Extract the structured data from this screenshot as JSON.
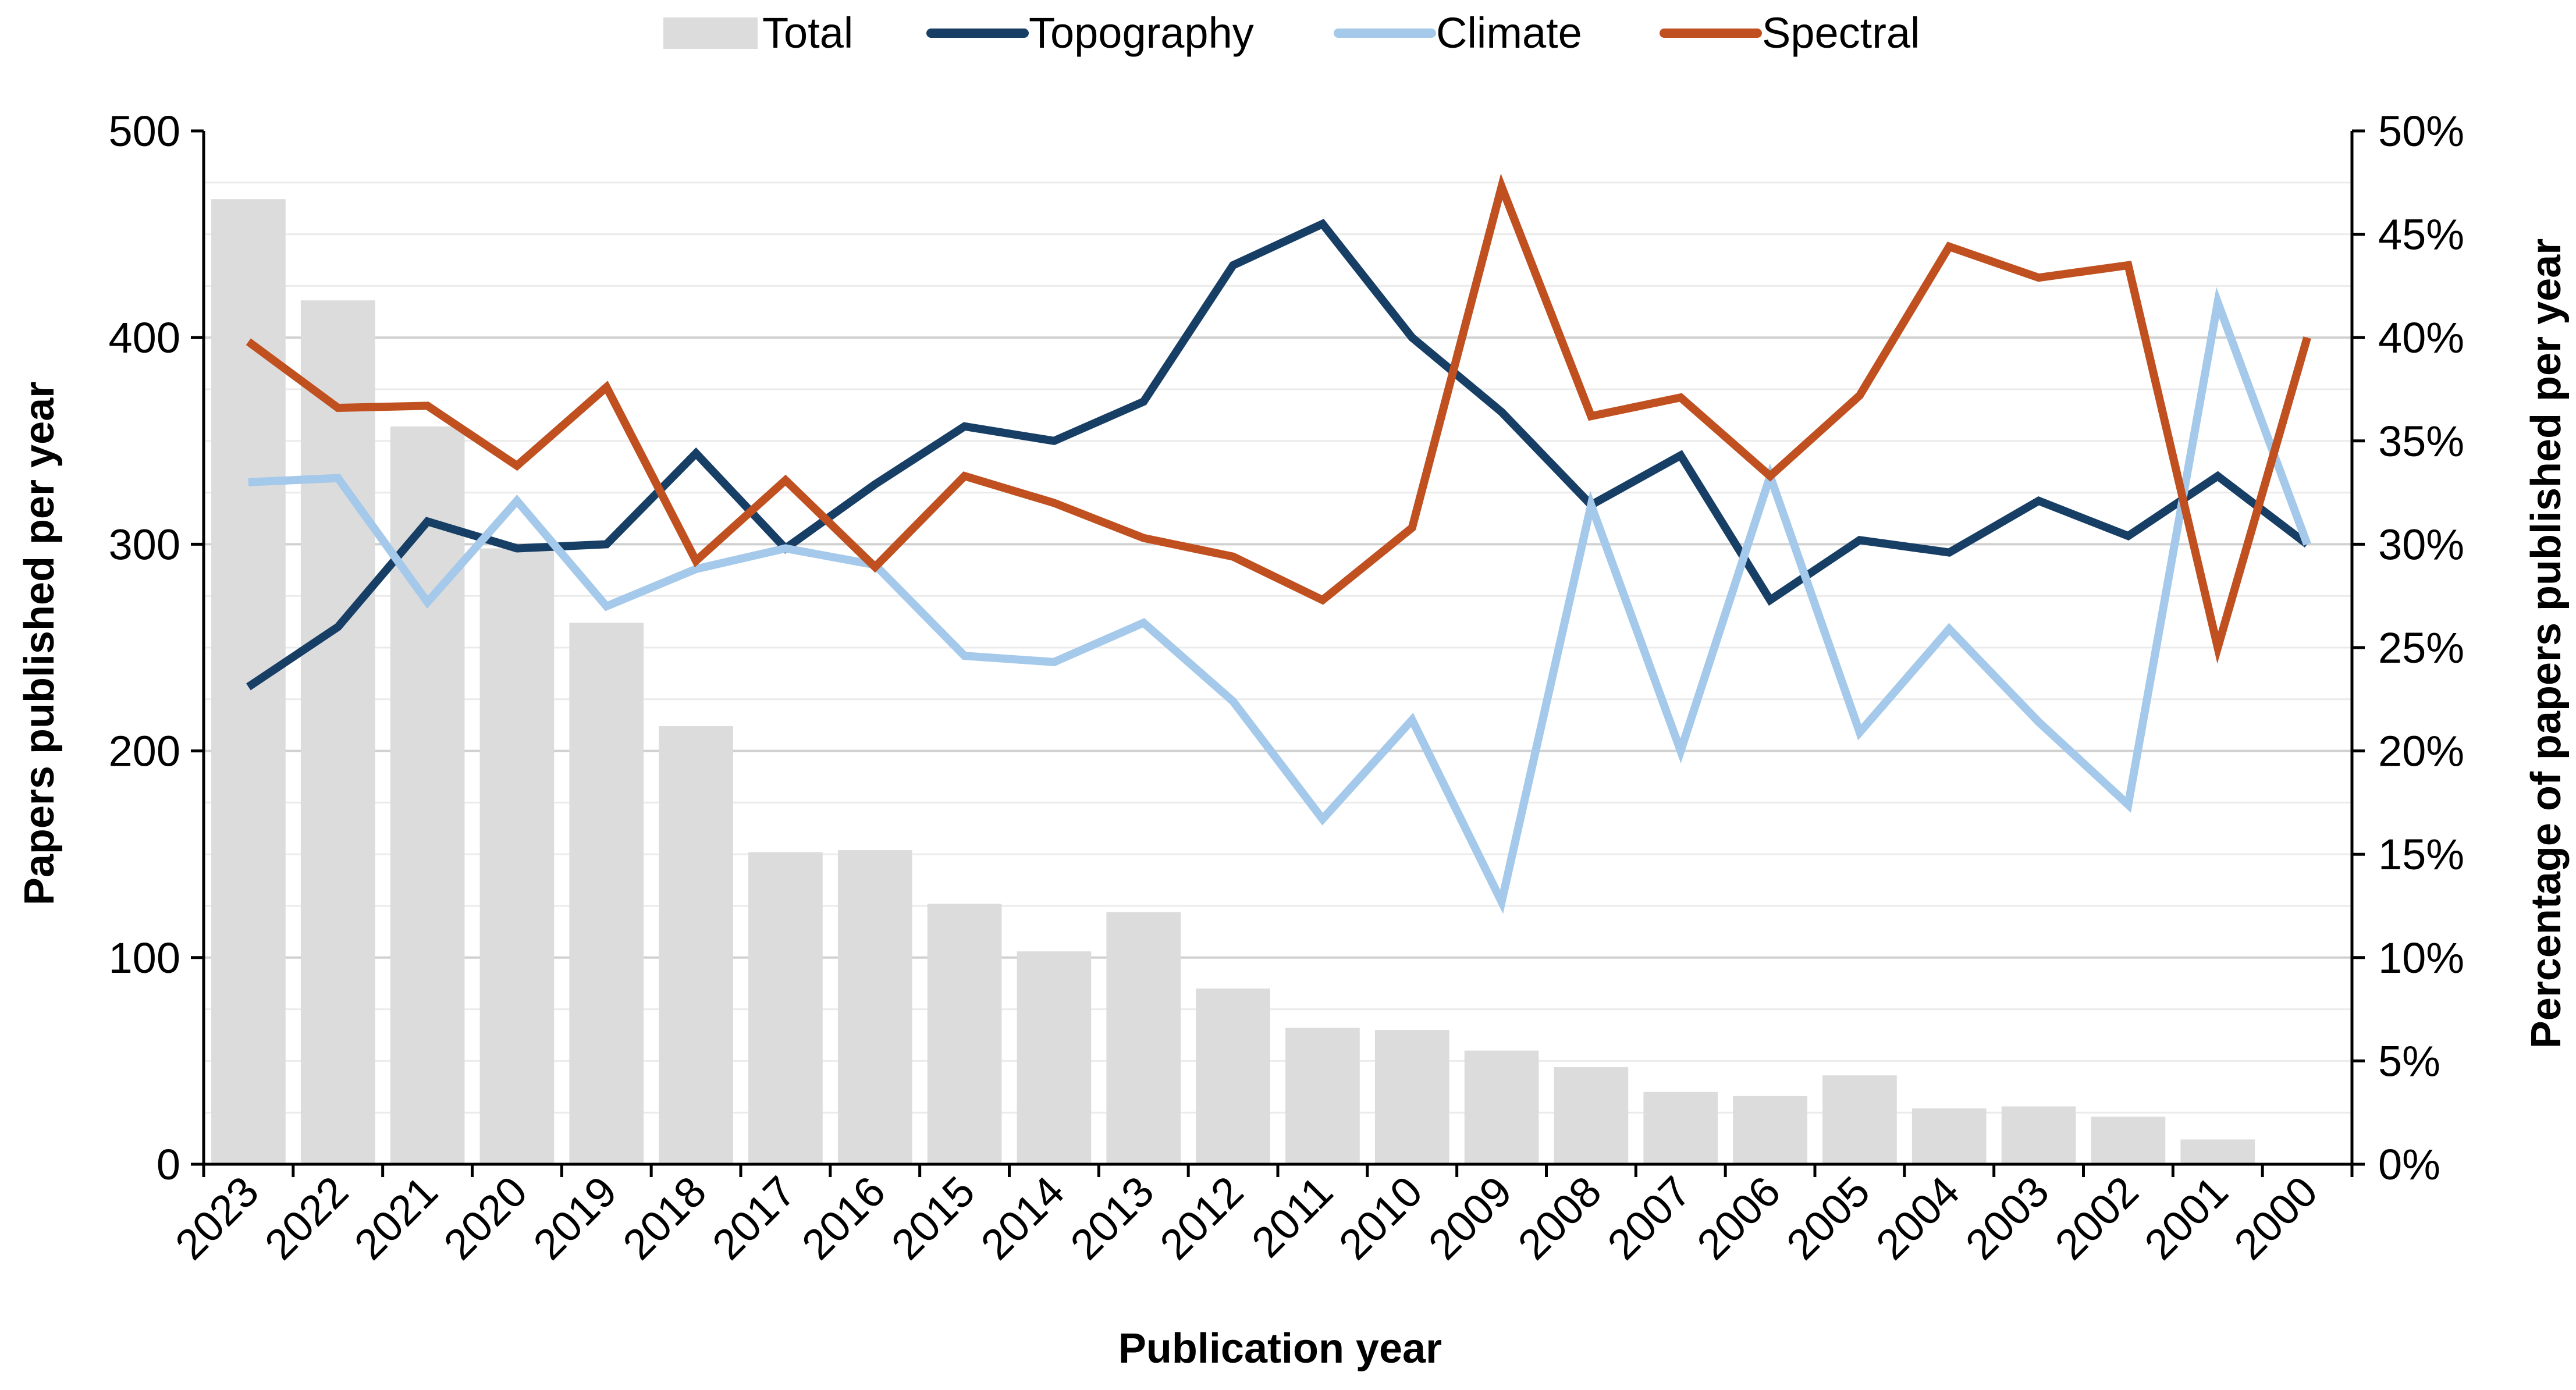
{
  "chart_data": {
    "type": "bar",
    "title": "",
    "xlabel": "Publication year",
    "ylabel": "Papers published per year",
    "y2label": "Percentage of papers published per year",
    "ylim": [
      0,
      500
    ],
    "y2lim": [
      0,
      50
    ],
    "yticks": [
      "0",
      "100",
      "200",
      "300",
      "400",
      "500"
    ],
    "y2ticks": [
      "0%",
      "5%",
      "10%",
      "15%",
      "20%",
      "25%",
      "30%",
      "35%",
      "40%",
      "45%",
      "50%"
    ],
    "grid": true,
    "legend_position": "top-center",
    "categories": [
      "2023",
      "2022",
      "2021",
      "2020",
      "2019",
      "2018",
      "2017",
      "2016",
      "2015",
      "2014",
      "2013",
      "2012",
      "2011",
      "2010",
      "2009",
      "2008",
      "2007",
      "2006",
      "2005",
      "2004",
      "2003",
      "2002",
      "2001",
      "2000"
    ],
    "bar_series": {
      "name": "Total",
      "axis": "left",
      "color": "#dcdcdc",
      "values": [
        467,
        418,
        357,
        298,
        262,
        212,
        151,
        152,
        126,
        103,
        122,
        85,
        66,
        65,
        55,
        47,
        35,
        33,
        43,
        27,
        28,
        23,
        12,
        0
      ]
    },
    "line_series": [
      {
        "name": "Topography",
        "axis": "right",
        "color": "#173f66",
        "values": [
          23.1,
          26.0,
          31.1,
          29.8,
          30.0,
          34.4,
          29.8,
          32.9,
          35.7,
          35.0,
          36.9,
          43.5,
          45.5,
          40.0,
          36.4,
          31.9,
          34.3,
          27.3,
          30.2,
          29.6,
          32.1,
          30.4,
          33.3,
          30.0
        ]
      },
      {
        "name": "Climate",
        "axis": "right",
        "color": "#a4c9ea",
        "values": [
          33.0,
          33.2,
          27.2,
          32.1,
          27.0,
          28.8,
          29.8,
          29.0,
          24.6,
          24.3,
          26.2,
          22.4,
          16.7,
          21.5,
          12.7,
          31.9,
          20.0,
          33.3,
          20.9,
          25.9,
          21.4,
          17.4,
          41.7,
          30.0
        ]
      },
      {
        "name": "Spectral",
        "axis": "right",
        "color": "#c0501f",
        "values": [
          39.8,
          36.6,
          36.7,
          33.8,
          37.6,
          29.2,
          33.1,
          28.9,
          33.3,
          32.0,
          30.3,
          29.4,
          27.3,
          30.8,
          47.3,
          36.2,
          37.1,
          33.3,
          37.2,
          44.4,
          42.9,
          43.5,
          25.0,
          40.0
        ]
      }
    ]
  }
}
